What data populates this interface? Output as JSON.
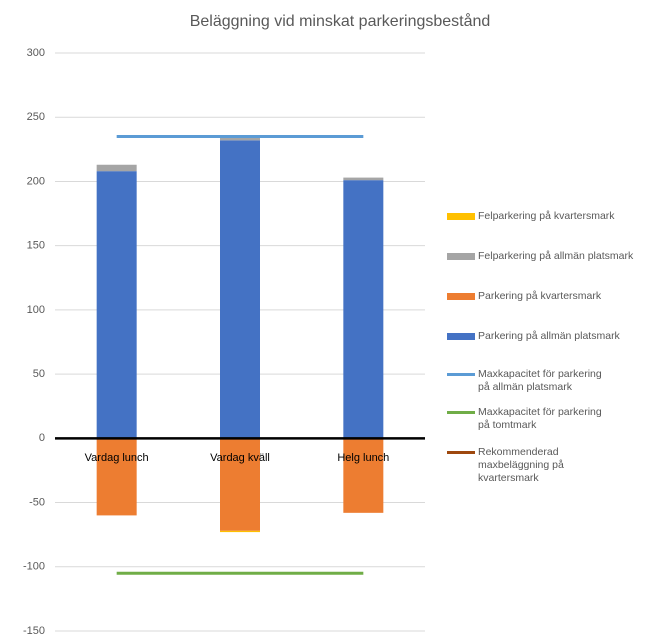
{
  "chart_data": {
    "type": "bar",
    "title": "Beläggning vid minskat parkeringsbestånd",
    "categories": [
      "Vardag lunch",
      "Vardag kväll",
      "Helg lunch"
    ],
    "ylim": [
      -150,
      300
    ],
    "yticks": [
      -150,
      -100,
      -50,
      0,
      50,
      100,
      150,
      200,
      250,
      300
    ],
    "grid": true,
    "legend": "right",
    "series": [
      {
        "name": "Felparkering på kvartersmark",
        "type": "bar",
        "color": "#ffc000",
        "values": [
          0,
          -1,
          0
        ]
      },
      {
        "name": "Felparkering på allmän platsmark",
        "type": "bar",
        "color": "#a5a5a5",
        "values": [
          5,
          4,
          2
        ]
      },
      {
        "name": "Parkering på kvartersmark",
        "type": "bar",
        "color": "#ed7d31",
        "values": [
          -60,
          -72,
          -58
        ]
      },
      {
        "name": "Parkering på allmän platsmark",
        "type": "bar",
        "color": "#4472c4",
        "values": [
          208,
          232,
          201
        ]
      },
      {
        "name": "Maxkapacitet för parkering på allmän platsmark",
        "type": "line",
        "color": "#5b9bd5",
        "values": [
          235,
          235,
          235
        ]
      },
      {
        "name": "Maxkapacitet för parkering på tomtmark",
        "type": "line",
        "color": "#70ad47",
        "values": [
          -105,
          -105,
          -105
        ]
      },
      {
        "name": "Rekommenderad maxbeläggning på kvartersmark",
        "type": "line",
        "color": "#9e480e",
        "values": [
          null,
          null,
          null
        ]
      }
    ]
  }
}
